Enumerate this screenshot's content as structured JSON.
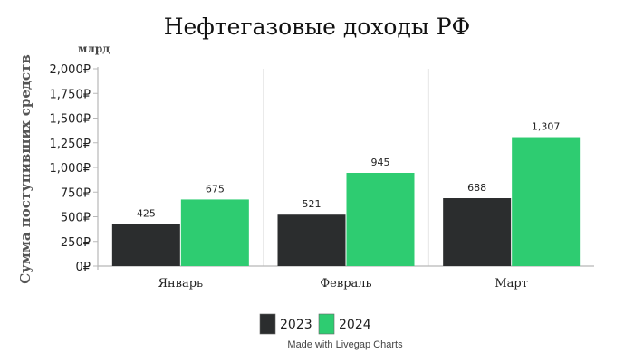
{
  "chart_data": {
    "type": "bar",
    "title": "Нефтегазовые доходы РФ",
    "unit_label": "млрд",
    "ylabel": "Сумма поступивших средств",
    "xlabel": "",
    "categories": [
      "Январь",
      "Февраль",
      "Март"
    ],
    "series": [
      {
        "name": "2023",
        "color": "#2b2d2e",
        "values": [
          425,
          521,
          688
        ],
        "labels": [
          "425",
          "521",
          "688"
        ]
      },
      {
        "name": "2024",
        "color": "#2ecc71",
        "values": [
          675,
          945,
          1307
        ],
        "labels": [
          "675",
          "945",
          "1,307"
        ]
      }
    ],
    "ylim": [
      0,
      2000
    ],
    "yticks": [
      0,
      250,
      500,
      750,
      1000,
      1250,
      1500,
      1750,
      2000
    ],
    "ytick_labels": [
      "0₽",
      "250₽",
      "500₽",
      "750₽",
      "1,000₽",
      "1,250₽",
      "1,500₽",
      "1,750₽",
      "2,000₽"
    ],
    "grid": "vertical",
    "legend": "bottom-center",
    "credit": "Made with Livegap Charts"
  }
}
